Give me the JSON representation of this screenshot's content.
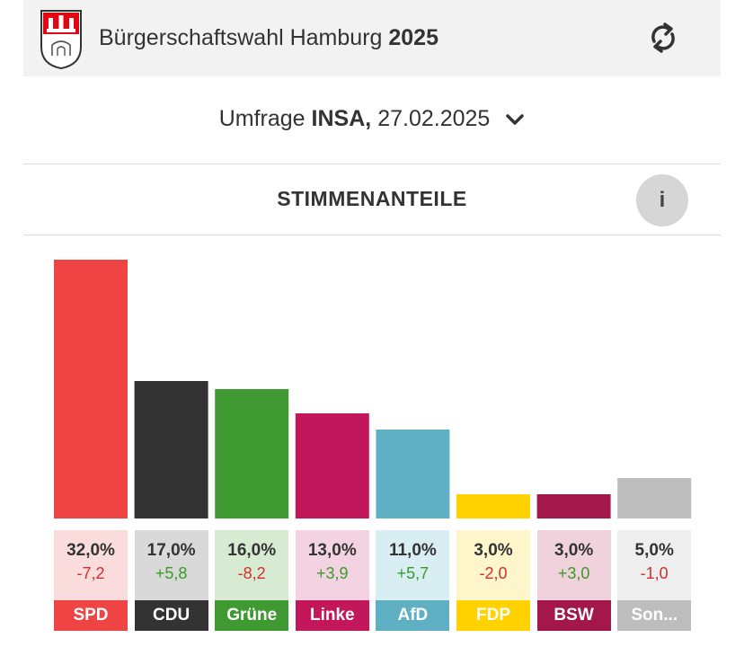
{
  "header": {
    "title_prefix": "Bürgerschaftswahl Hamburg",
    "title_year": "2025"
  },
  "survey": {
    "prefix": "Umfrage",
    "institute": "INSA,",
    "date": "27.02.2025"
  },
  "section": {
    "title": "STIMMENANTEILE",
    "info_label": "i"
  },
  "chart_data": {
    "type": "bar",
    "title": "STIMMENANTEILE",
    "categories": [
      "SPD",
      "CDU",
      "Grüne",
      "Linke",
      "AfD",
      "FDP",
      "BSW",
      "Son..."
    ],
    "values": [
      32.0,
      17.0,
      16.0,
      13.0,
      11.0,
      3.0,
      3.0,
      5.0
    ],
    "value_labels": [
      "32,0%",
      "17,0%",
      "16,0%",
      "13,0%",
      "11,0%",
      "3,0%",
      "3,0%",
      "5,0%"
    ],
    "changes": [
      "-7,2",
      "+5,8",
      "-8,2",
      "+3,9",
      "+5,7",
      "-2,0",
      "+3,0",
      "-1,0"
    ],
    "colors": [
      "#ef4444",
      "#333333",
      "#3f9a32",
      "#c2185b",
      "#5eb0c2",
      "#ffd200",
      "#a3174a",
      "#bdbdbd"
    ],
    "light_colors": [
      "#fbdcdc",
      "#d9d9d9",
      "#d6ebd2",
      "#f3d3e1",
      "#d8eef3",
      "#fff6cc",
      "#efd2dc",
      "#eeeeee"
    ],
    "ylim": [
      0,
      32
    ]
  }
}
